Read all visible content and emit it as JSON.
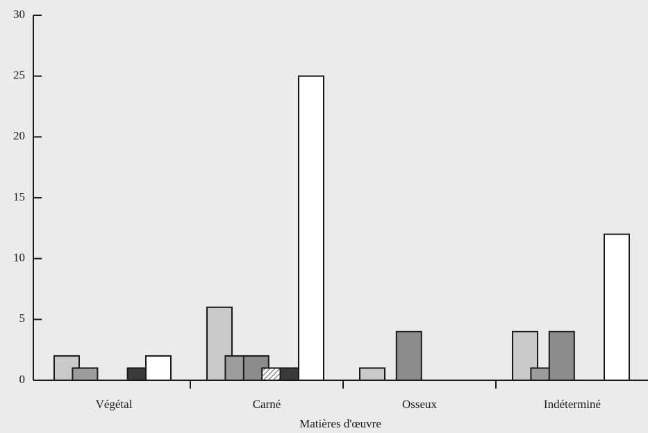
{
  "chart_data": {
    "type": "bar",
    "x_label": "Matières d'œuvre",
    "categories": [
      "Végétal",
      "Carné",
      "Osseux",
      "Indéterminé"
    ],
    "series": [
      {
        "color": "#c9c9c9",
        "values": [
          2,
          6,
          1,
          4
        ]
      },
      {
        "color": "#9c9c9c",
        "values": [
          1,
          2,
          0,
          1
        ]
      },
      {
        "color": "#8c8c8c",
        "values": [
          0,
          2,
          4,
          4
        ]
      },
      {
        "color": "#d0d0d0",
        "hatch": true,
        "values": [
          0,
          1,
          0,
          0
        ]
      },
      {
        "color": "#3a3a3a",
        "values": [
          1,
          1,
          0,
          0
        ]
      },
      {
        "color": "#ffffff",
        "values": [
          2,
          25,
          0,
          12
        ]
      }
    ],
    "ylim": [
      0,
      30
    ],
    "yticks": [
      0,
      5,
      10,
      15,
      20,
      25,
      30
    ]
  }
}
